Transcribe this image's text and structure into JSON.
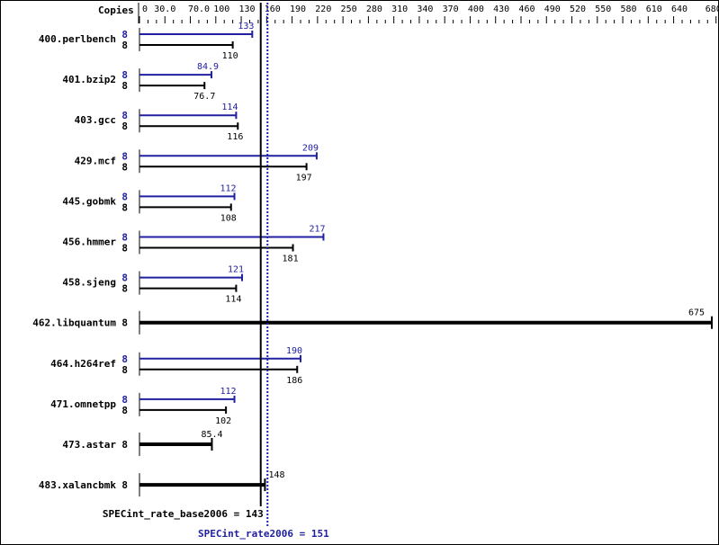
{
  "chart_data": {
    "type": "bar",
    "orientation": "horizontal",
    "axis_label": "Copies",
    "xlim": [
      0,
      675
    ],
    "ticks": [
      "0",
      "30.0",
      "70.0",
      "100",
      "130",
      "160",
      "190",
      "220",
      "250",
      "280",
      "310",
      "340",
      "370",
      "400",
      "430",
      "460",
      "490",
      "520",
      "550",
      "580",
      "610",
      "640",
      "680"
    ],
    "tick_values": [
      0,
      30,
      70,
      100,
      130,
      160,
      190,
      220,
      250,
      280,
      310,
      340,
      370,
      400,
      430,
      460,
      490,
      520,
      550,
      580,
      610,
      640,
      680
    ],
    "colors": {
      "peak": "#2020a0",
      "base": "#000000"
    },
    "benchmarks": [
      {
        "name": "400.perlbench",
        "peak_copies": "8",
        "peak": 133,
        "peak_label": "133",
        "base_copies": "8",
        "base": 110,
        "base_label": "110"
      },
      {
        "name": "401.bzip2",
        "peak_copies": "8",
        "peak": 84.9,
        "peak_label": "84.9",
        "base_copies": "8",
        "base": 76.7,
        "base_label": "76.7"
      },
      {
        "name": "403.gcc",
        "peak_copies": "8",
        "peak": 114,
        "peak_label": "114",
        "base_copies": "8",
        "base": 116,
        "base_label": "116"
      },
      {
        "name": "429.mcf",
        "peak_copies": "8",
        "peak": 209,
        "peak_label": "209",
        "base_copies": "8",
        "base": 197,
        "base_label": "197"
      },
      {
        "name": "445.gobmk",
        "peak_copies": "8",
        "peak": 112,
        "peak_label": "112",
        "base_copies": "8",
        "base": 108,
        "base_label": "108"
      },
      {
        "name": "456.hmmer",
        "peak_copies": "8",
        "peak": 217,
        "peak_label": "217",
        "base_copies": "8",
        "base": 181,
        "base_label": "181"
      },
      {
        "name": "458.sjeng",
        "peak_copies": "8",
        "peak": 121,
        "peak_label": "121",
        "base_copies": "8",
        "base": 114,
        "base_label": "114"
      },
      {
        "name": "462.libquantum",
        "combined": true,
        "base_copies": "8",
        "base": 675,
        "base_label": "675"
      },
      {
        "name": "464.h264ref",
        "peak_copies": "8",
        "peak": 190,
        "peak_label": "190",
        "base_copies": "8",
        "base": 186,
        "base_label": "186"
      },
      {
        "name": "471.omnetpp",
        "peak_copies": "8",
        "peak": 112,
        "peak_label": "112",
        "base_copies": "8",
        "base": 102,
        "base_label": "102"
      },
      {
        "name": "473.astar",
        "combined": true,
        "base_copies": "8",
        "base": 85.4,
        "base_label": "85.4"
      },
      {
        "name": "483.xalancbmk",
        "combined": true,
        "base_copies": "8",
        "base": 148,
        "base_label": "148"
      }
    ],
    "base_summary": {
      "label": "SPECint_rate_base2006 = 143",
      "value": 143
    },
    "peak_summary": {
      "label": "SPECint_rate2006 = 151",
      "value": 151
    }
  }
}
